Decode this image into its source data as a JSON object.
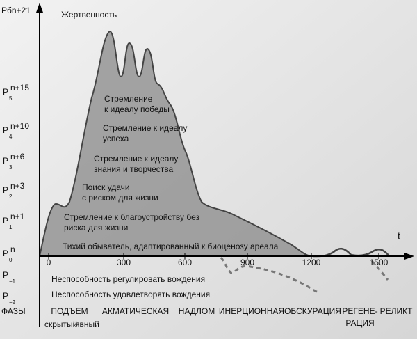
{
  "top_label": "Рбn+21",
  "top_annotation": "Жертвенность",
  "levels": [
    {
      "base": "P",
      "sub": "5",
      "sup": "n+15"
    },
    {
      "base": "P",
      "sub": "4",
      "sup": "n+10"
    },
    {
      "base": "P",
      "sub": "3",
      "sup": "n+6"
    },
    {
      "base": "P",
      "sub": "2",
      "sup": "n+3"
    },
    {
      "base": "P",
      "sub": "1",
      "sup": "n+1"
    },
    {
      "base": "P",
      "sub": "0",
      "sup": "n"
    },
    {
      "base": "P",
      "sub": "−1"
    },
    {
      "base": "P",
      "sub": "−2"
    }
  ],
  "x_axis": {
    "label": "t",
    "ticks": [
      0,
      300,
      600,
      900,
      1200,
      1500
    ]
  },
  "zones": [
    [
      "Стремление",
      "к идеалу победы"
    ],
    [
      "Стремление к идеалу",
      "успеха"
    ],
    [
      "Стремление к идеалу",
      "знания и творчества"
    ],
    [
      "Поиск удачи",
      "с риском для жизни"
    ],
    [
      "Стремление к благоустройству без",
      "риска для жизни"
    ],
    [
      "Тихий обыватель, адаптированный к биоценозу ареала"
    ]
  ],
  "below_zero": [
    "Неспособность регулировать вождения",
    "Неспособность удовлетворять вождения"
  ],
  "phases": {
    "title": "ФАЗЫ",
    "names": [
      [
        "ПОДЪЕМ"
      ],
      [
        "АКМАТИЧЕСКАЯ"
      ],
      [
        "НАДЛОМ"
      ],
      [
        "ИНЕРЦИОННАЯ"
      ],
      [
        "ОБСКУРАЦИЯ"
      ],
      [
        "РЕГЕНЕ-",
        "РАЦИЯ"
      ],
      [
        "РЕЛИКТ"
      ]
    ],
    "sub_phases": [
      "скрытый",
      "явный"
    ]
  }
}
